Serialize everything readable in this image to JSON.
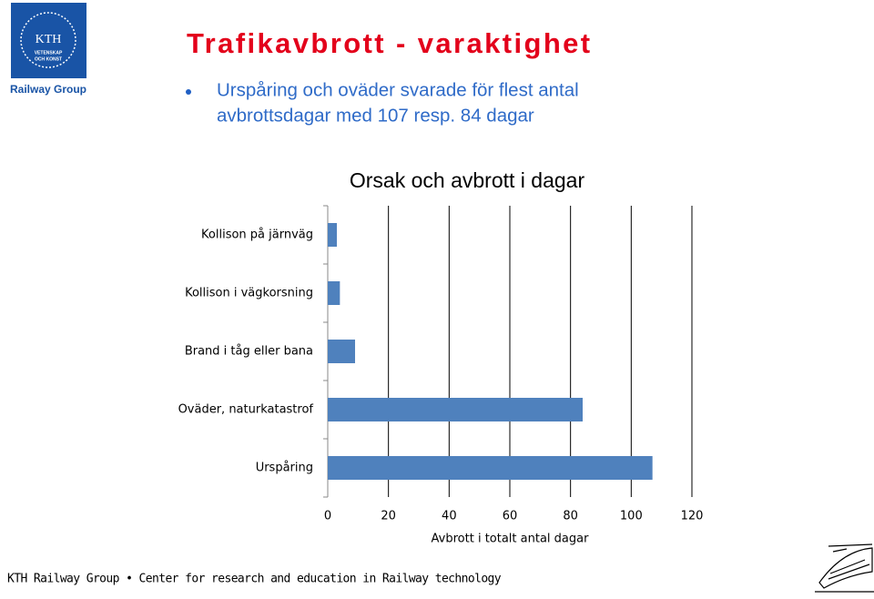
{
  "slide": {
    "logo_lines": [
      "KTH",
      "VETENSKAP",
      "OCH KONST"
    ],
    "group": "Railway Group",
    "title": "Trafikavbrott - varaktighet",
    "bullet_lines": [
      "Urspåring och oväder svarade för flest antal",
      "avbrottsdagar med 107 resp. 84 dagar"
    ],
    "footer": "KTH Railway Group • Center for research and education in Railway technology"
  },
  "chart_data": {
    "type": "hbar",
    "title": "Orsak och avbrott i dagar",
    "x_label": "Avbrott i totalt antal dagar",
    "categories": [
      "Kollison på järnväg",
      "Kollison i vägkorsning",
      "Brand i tåg eller bana",
      "Oväder, naturkatastrof",
      "Urspåring"
    ],
    "values": [
      3,
      4,
      9,
      84,
      107
    ],
    "color": "#4f81bd",
    "xlim": [
      0,
      120
    ],
    "xticks": [
      0,
      20,
      40,
      60,
      80,
      100,
      120
    ],
    "grid": true
  }
}
